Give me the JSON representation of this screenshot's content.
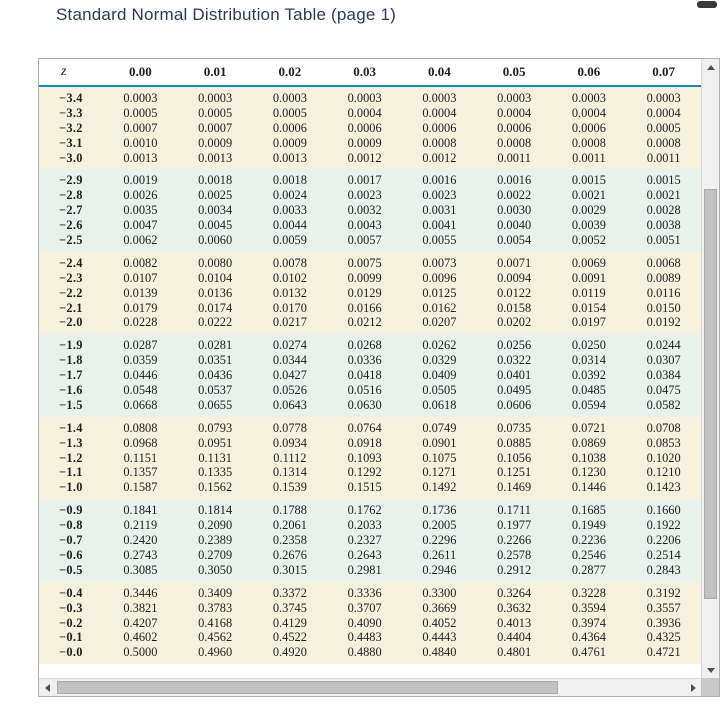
{
  "title": "Standard Normal Distribution Table (page 1)",
  "window": {
    "minimize_icon": "minimize"
  },
  "colors": {
    "title_color": "#2b3c59",
    "rule_color": "#1787ad",
    "band_cream": "#f6f1dc",
    "band_blue": "#e8f1ec",
    "panel_border": "#b0b0b0",
    "scroll_track": "#f0f0f0",
    "scroll_thumb": "#c2c2c2",
    "corner": "#c9c9c9",
    "text_color": "#1f1f1f"
  },
  "scrollbar_icons": {
    "up": "triangle-up",
    "down": "triangle-down",
    "left": "triangle-left",
    "right": "triangle-right"
  },
  "table": {
    "z_header": "z",
    "headers": [
      "0.00",
      "0.01",
      "0.02",
      "0.03",
      "0.04",
      "0.05",
      "0.06",
      "0.07"
    ],
    "bands": [
      {
        "tone": "cream",
        "rows": [
          {
            "z": "−3.4",
            "values": [
              "0.0003",
              "0.0003",
              "0.0003",
              "0.0003",
              "0.0003",
              "0.0003",
              "0.0003",
              "0.0003"
            ]
          },
          {
            "z": "−3.3",
            "values": [
              "0.0005",
              "0.0005",
              "0.0005",
              "0.0004",
              "0.0004",
              "0.0004",
              "0.0004",
              "0.0004"
            ]
          },
          {
            "z": "−3.2",
            "values": [
              "0.0007",
              "0.0007",
              "0.0006",
              "0.0006",
              "0.0006",
              "0.0006",
              "0.0006",
              "0.0005"
            ]
          },
          {
            "z": "−3.1",
            "values": [
              "0.0010",
              "0.0009",
              "0.0009",
              "0.0009",
              "0.0008",
              "0.0008",
              "0.0008",
              "0.0008"
            ]
          },
          {
            "z": "−3.0",
            "values": [
              "0.0013",
              "0.0013",
              "0.0013",
              "0.0012",
              "0.0012",
              "0.0011",
              "0.0011",
              "0.0011"
            ]
          }
        ]
      },
      {
        "tone": "blue",
        "rows": [
          {
            "z": "−2.9",
            "values": [
              "0.0019",
              "0.0018",
              "0.0018",
              "0.0017",
              "0.0016",
              "0.0016",
              "0.0015",
              "0.0015"
            ]
          },
          {
            "z": "−2.8",
            "values": [
              "0.0026",
              "0.0025",
              "0.0024",
              "0.0023",
              "0.0023",
              "0.0022",
              "0.0021",
              "0.0021"
            ]
          },
          {
            "z": "−2.7",
            "values": [
              "0.0035",
              "0.0034",
              "0.0033",
              "0.0032",
              "0.0031",
              "0.0030",
              "0.0029",
              "0.0028"
            ]
          },
          {
            "z": "−2.6",
            "values": [
              "0.0047",
              "0.0045",
              "0.0044",
              "0.0043",
              "0.0041",
              "0.0040",
              "0.0039",
              "0.0038"
            ]
          },
          {
            "z": "−2.5",
            "values": [
              "0.0062",
              "0.0060",
              "0.0059",
              "0.0057",
              "0.0055",
              "0.0054",
              "0.0052",
              "0.0051"
            ]
          }
        ]
      },
      {
        "tone": "cream",
        "rows": [
          {
            "z": "−2.4",
            "values": [
              "0.0082",
              "0.0080",
              "0.0078",
              "0.0075",
              "0.0073",
              "0.0071",
              "0.0069",
              "0.0068"
            ]
          },
          {
            "z": "−2.3",
            "values": [
              "0.0107",
              "0.0104",
              "0.0102",
              "0.0099",
              "0.0096",
              "0.0094",
              "0.0091",
              "0.0089"
            ]
          },
          {
            "z": "−2.2",
            "values": [
              "0.0139",
              "0.0136",
              "0.0132",
              "0.0129",
              "0.0125",
              "0.0122",
              "0.0119",
              "0.0116"
            ]
          },
          {
            "z": "−2.1",
            "values": [
              "0.0179",
              "0.0174",
              "0.0170",
              "0.0166",
              "0.0162",
              "0.0158",
              "0.0154",
              "0.0150"
            ]
          },
          {
            "z": "−2.0",
            "values": [
              "0.0228",
              "0.0222",
              "0.0217",
              "0.0212",
              "0.0207",
              "0.0202",
              "0.0197",
              "0.0192"
            ]
          }
        ]
      },
      {
        "tone": "blue",
        "rows": [
          {
            "z": "−1.9",
            "values": [
              "0.0287",
              "0.0281",
              "0.0274",
              "0.0268",
              "0.0262",
              "0.0256",
              "0.0250",
              "0.0244"
            ]
          },
          {
            "z": "−1.8",
            "values": [
              "0.0359",
              "0.0351",
              "0.0344",
              "0.0336",
              "0.0329",
              "0.0322",
              "0.0314",
              "0.0307"
            ]
          },
          {
            "z": "−1.7",
            "values": [
              "0.0446",
              "0.0436",
              "0.0427",
              "0.0418",
              "0.0409",
              "0.0401",
              "0.0392",
              "0.0384"
            ]
          },
          {
            "z": "−1.6",
            "values": [
              "0.0548",
              "0.0537",
              "0.0526",
              "0.0516",
              "0.0505",
              "0.0495",
              "0.0485",
              "0.0475"
            ]
          },
          {
            "z": "−1.5",
            "values": [
              "0.0668",
              "0.0655",
              "0.0643",
              "0.0630",
              "0.0618",
              "0.0606",
              "0.0594",
              "0.0582"
            ]
          }
        ]
      },
      {
        "tone": "cream",
        "rows": [
          {
            "z": "−1.4",
            "values": [
              "0.0808",
              "0.0793",
              "0.0778",
              "0.0764",
              "0.0749",
              "0.0735",
              "0.0721",
              "0.0708"
            ]
          },
          {
            "z": "−1.3",
            "values": [
              "0.0968",
              "0.0951",
              "0.0934",
              "0.0918",
              "0.0901",
              "0.0885",
              "0.0869",
              "0.0853"
            ]
          },
          {
            "z": "−1.2",
            "values": [
              "0.1151",
              "0.1131",
              "0.1112",
              "0.1093",
              "0.1075",
              "0.1056",
              "0.1038",
              "0.1020"
            ]
          },
          {
            "z": "−1.1",
            "values": [
              "0.1357",
              "0.1335",
              "0.1314",
              "0.1292",
              "0.1271",
              "0.1251",
              "0.1230",
              "0.1210"
            ]
          },
          {
            "z": "−1.0",
            "values": [
              "0.1587",
              "0.1562",
              "0.1539",
              "0.1515",
              "0.1492",
              "0.1469",
              "0.1446",
              "0.1423"
            ]
          }
        ]
      },
      {
        "tone": "blue",
        "rows": [
          {
            "z": "−0.9",
            "values": [
              "0.1841",
              "0.1814",
              "0.1788",
              "0.1762",
              "0.1736",
              "0.1711",
              "0.1685",
              "0.1660"
            ]
          },
          {
            "z": "−0.8",
            "values": [
              "0.2119",
              "0.2090",
              "0.2061",
              "0.2033",
              "0.2005",
              "0.1977",
              "0.1949",
              "0.1922"
            ]
          },
          {
            "z": "−0.7",
            "values": [
              "0.2420",
              "0.2389",
              "0.2358",
              "0.2327",
              "0.2296",
              "0.2266",
              "0.2236",
              "0.2206"
            ]
          },
          {
            "z": "−0.6",
            "values": [
              "0.2743",
              "0.2709",
              "0.2676",
              "0.2643",
              "0.2611",
              "0.2578",
              "0.2546",
              "0.2514"
            ]
          },
          {
            "z": "−0.5",
            "values": [
              "0.3085",
              "0.3050",
              "0.3015",
              "0.2981",
              "0.2946",
              "0.2912",
              "0.2877",
              "0.2843"
            ]
          }
        ]
      },
      {
        "tone": "cream",
        "rows": [
          {
            "z": "−0.4",
            "values": [
              "0.3446",
              "0.3409",
              "0.3372",
              "0.3336",
              "0.3300",
              "0.3264",
              "0.3228",
              "0.3192"
            ]
          },
          {
            "z": "−0.3",
            "values": [
              "0.3821",
              "0.3783",
              "0.3745",
              "0.3707",
              "0.3669",
              "0.3632",
              "0.3594",
              "0.3557"
            ]
          },
          {
            "z": "−0.2",
            "values": [
              "0.4207",
              "0.4168",
              "0.4129",
              "0.4090",
              "0.4052",
              "0.4013",
              "0.3974",
              "0.3936"
            ]
          },
          {
            "z": "−0.1",
            "values": [
              "0.4602",
              "0.4562",
              "0.4522",
              "0.4483",
              "0.4443",
              "0.4404",
              "0.4364",
              "0.4325"
            ]
          },
          {
            "z": "−0.0",
            "values": [
              "0.5000",
              "0.4960",
              "0.4920",
              "0.4880",
              "0.4840",
              "0.4801",
              "0.4761",
              "0.4721"
            ]
          }
        ]
      }
    ]
  }
}
